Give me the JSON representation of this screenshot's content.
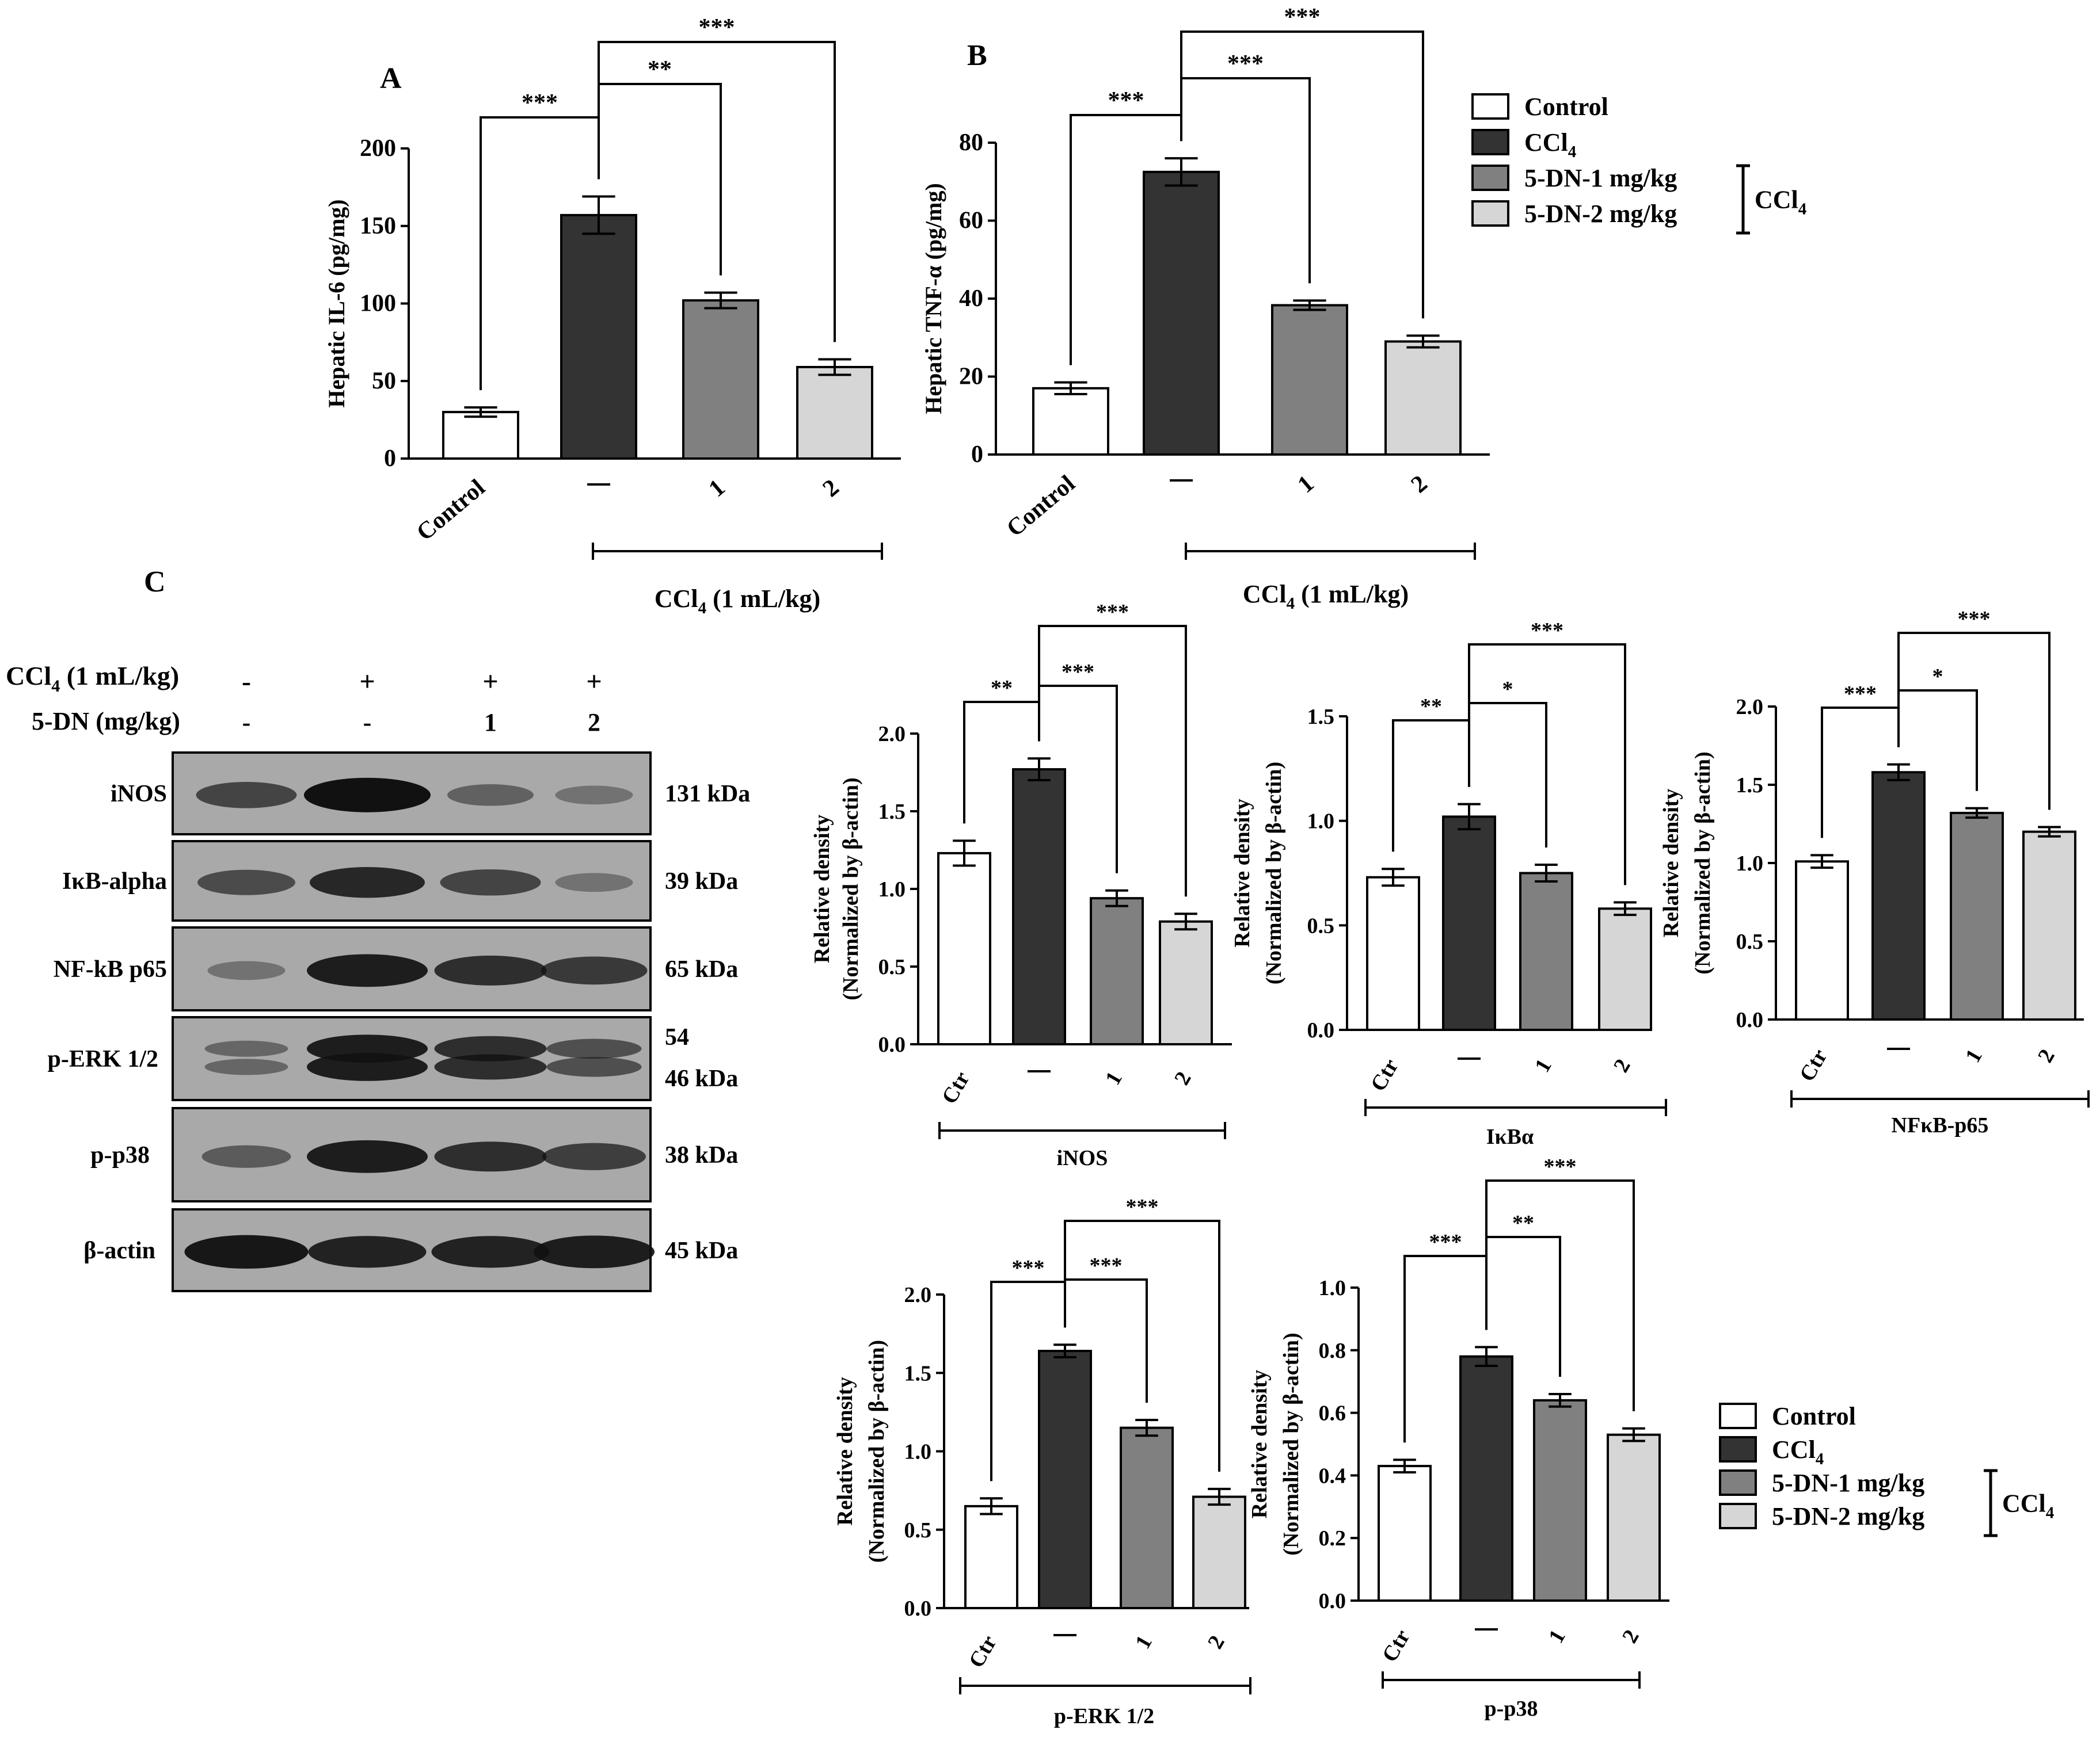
{
  "colors": {
    "control": "#ffffff",
    "ccl4": "#333333",
    "dn1": "#808080",
    "dn2": "#d6d6d6",
    "ink": "#000000",
    "blot_bg": "#a9a9a9"
  },
  "panel_labels": {
    "A": "A",
    "B": "B",
    "C": "C"
  },
  "legend": {
    "control": "Control",
    "ccl4_base": "CCl",
    "ccl4_sub": "4",
    "dn1": "5-DN-1 mg/kg",
    "dn2": "5-DN-2 mg/kg",
    "bracket_base": "CCl",
    "bracket_sub": "4"
  },
  "treatment_bar": {
    "base": "CCl",
    "sub": "4",
    "rest": " (1 mL/kg)"
  },
  "blot": {
    "row1_base": "CCl",
    "row1_sub": "4",
    "row1_rest": " (1 mL/kg)",
    "row1_marks": [
      "-",
      "+",
      "+",
      "+"
    ],
    "row2_label": "5-DN (mg/kg)",
    "row2_marks": [
      "-",
      "-",
      "1",
      "2"
    ],
    "proteins": [
      {
        "name": "iNOS",
        "kda": "131 kDa",
        "kda2": "",
        "intensity": [
          0.55,
          1.0,
          0.3,
          0.15
        ],
        "double": false
      },
      {
        "name": "IκB-alpha",
        "kda": "39 kDa",
        "kda2": "",
        "intensity": [
          0.5,
          0.8,
          0.55,
          0.15
        ],
        "double": false
      },
      {
        "name": "NF-kB p65",
        "kda": "65 kDa",
        "kda2": "",
        "intensity": [
          0.15,
          0.9,
          0.75,
          0.65
        ],
        "double": false
      },
      {
        "name": "p-ERK 1/2",
        "kda": "54",
        "kda2": "46 kDa",
        "intensity": [
          0.25,
          0.9,
          0.75,
          0.45
        ],
        "double": true
      },
      {
        "name": "p-p38",
        "kda": "38 kDa",
        "kda2": "",
        "intensity": [
          0.35,
          0.9,
          0.75,
          0.6
        ],
        "double": false
      },
      {
        "name": "β-actin",
        "kda": "45 kDa",
        "kda2": "",
        "intensity": [
          0.95,
          0.85,
          0.85,
          0.9
        ],
        "double": false
      }
    ]
  },
  "chart_data": [
    {
      "type": "bar",
      "id": "A",
      "categories": [
        "Control",
        "–",
        "1",
        "2"
      ],
      "values": [
        30,
        157,
        102,
        59
      ],
      "errors": [
        3,
        12,
        5,
        5
      ],
      "ylabel": "Hepatic IL-6 (pg/mg)",
      "ylim": [
        0,
        200
      ],
      "yticks": [
        "0",
        "50",
        "100",
        "150",
        "200"
      ],
      "group_label": "CCl4 (1 mL/kg)",
      "significance": [
        {
          "from": 0,
          "to": 1,
          "label": "***"
        },
        {
          "from": 1,
          "to": 2,
          "label": "**"
        },
        {
          "from": 1,
          "to": 3,
          "label": "***"
        }
      ]
    },
    {
      "type": "bar",
      "id": "B",
      "categories": [
        "Control",
        "–",
        "1",
        "2"
      ],
      "values": [
        17,
        72.5,
        38.3,
        29
      ],
      "errors": [
        1.5,
        3.5,
        1.2,
        1.5
      ],
      "ylabel": "Hepatic TNF-α (pg/mg)",
      "ylim": [
        0,
        80
      ],
      "yticks": [
        "0",
        "20",
        "40",
        "60",
        "80"
      ],
      "group_label": "CCl4 (1 mL/kg)",
      "significance": [
        {
          "from": 0,
          "to": 1,
          "label": "***"
        },
        {
          "from": 1,
          "to": 2,
          "label": "***"
        },
        {
          "from": 1,
          "to": 3,
          "label": "***"
        }
      ]
    },
    {
      "type": "bar",
      "id": "iNOS",
      "categories": [
        "Ctr",
        "–",
        "1",
        "2"
      ],
      "values": [
        1.23,
        1.77,
        0.94,
        0.79
      ],
      "errors": [
        0.08,
        0.07,
        0.05,
        0.05
      ],
      "ylabel": "Relative density",
      "ylabel2": "(Normalized by β-actin)",
      "ylim": [
        0,
        2.0
      ],
      "yticks": [
        "0.0",
        "0.5",
        "1.0",
        "1.5",
        "2.0"
      ],
      "group_label": "iNOS",
      "significance": [
        {
          "from": 0,
          "to": 1,
          "label": "**"
        },
        {
          "from": 1,
          "to": 2,
          "label": "***"
        },
        {
          "from": 1,
          "to": 3,
          "label": "***"
        }
      ]
    },
    {
      "type": "bar",
      "id": "IkBa",
      "categories": [
        "Ctr",
        "–",
        "1",
        "2"
      ],
      "values": [
        0.73,
        1.02,
        0.75,
        0.58
      ],
      "errors": [
        0.04,
        0.06,
        0.04,
        0.03
      ],
      "ylabel": "Relative density",
      "ylabel2": "(Normalized by β-actin)",
      "ylim": [
        0,
        1.5
      ],
      "yticks": [
        "0.0",
        "0.5",
        "1.0",
        "1.5"
      ],
      "group_label": "IκBα",
      "significance": [
        {
          "from": 0,
          "to": 1,
          "label": "**"
        },
        {
          "from": 1,
          "to": 2,
          "label": "*"
        },
        {
          "from": 1,
          "to": 3,
          "label": "***"
        }
      ]
    },
    {
      "type": "bar",
      "id": "NFkB",
      "categories": [
        "Ctr",
        "–",
        "1",
        "2"
      ],
      "values": [
        1.01,
        1.58,
        1.32,
        1.2
      ],
      "errors": [
        0.04,
        0.05,
        0.03,
        0.03
      ],
      "ylabel": "Relative density",
      "ylabel2": "(Normalized by β-actin)",
      "ylim": [
        0,
        2.0
      ],
      "yticks": [
        "0.0",
        "0.5",
        "1.0",
        "1.5",
        "2.0"
      ],
      "group_label": "NFκB-p65",
      "significance": [
        {
          "from": 0,
          "to": 1,
          "label": "***"
        },
        {
          "from": 1,
          "to": 2,
          "label": "*"
        },
        {
          "from": 1,
          "to": 3,
          "label": "***"
        }
      ]
    },
    {
      "type": "bar",
      "id": "pERK",
      "categories": [
        "Ctr",
        "–",
        "1",
        "2"
      ],
      "values": [
        0.65,
        1.64,
        1.15,
        0.71
      ],
      "errors": [
        0.05,
        0.04,
        0.05,
        0.05
      ],
      "ylabel": "Relative density",
      "ylabel2": "(Normalized by β-actin)",
      "ylim": [
        0,
        2.0
      ],
      "yticks": [
        "0.0",
        "0.5",
        "1.0",
        "1.5",
        "2.0"
      ],
      "group_label": "p-ERK 1/2",
      "significance": [
        {
          "from": 0,
          "to": 1,
          "label": "***"
        },
        {
          "from": 1,
          "to": 2,
          "label": "***"
        },
        {
          "from": 1,
          "to": 3,
          "label": "***"
        }
      ]
    },
    {
      "type": "bar",
      "id": "pp38",
      "categories": [
        "Ctr",
        "–",
        "1",
        "2"
      ],
      "values": [
        0.43,
        0.78,
        0.64,
        0.53
      ],
      "errors": [
        0.02,
        0.03,
        0.02,
        0.02
      ],
      "ylabel": "Relative density",
      "ylabel2": "(Normalized by β-actin)",
      "ylim": [
        0,
        1.0
      ],
      "yticks": [
        "0.0",
        "0.2",
        "0.4",
        "0.6",
        "0.8",
        "1.0"
      ],
      "group_label": "p-p38",
      "significance": [
        {
          "from": 0,
          "to": 1,
          "label": "***"
        },
        {
          "from": 1,
          "to": 2,
          "label": "**"
        },
        {
          "from": 1,
          "to": 3,
          "label": "***"
        }
      ]
    }
  ]
}
